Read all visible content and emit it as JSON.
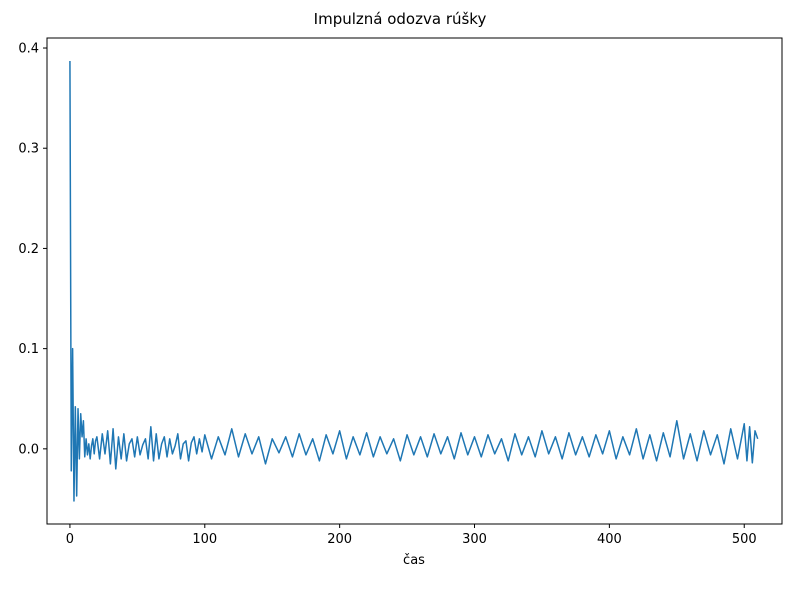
{
  "chart_data": {
    "type": "line",
    "title": "Impulzná odozva rúšky",
    "xlabel": "čas",
    "ylabel": "",
    "xlim": [
      -17,
      528
    ],
    "ylim": [
      -0.075,
      0.41
    ],
    "xticks": [
      0,
      100,
      200,
      300,
      400,
      500
    ],
    "xtick_labels": [
      "0",
      "100",
      "200",
      "300",
      "400",
      "500"
    ],
    "yticks": [
      0.0,
      0.1,
      0.2,
      0.3,
      0.4
    ],
    "ytick_labels": [
      "0.0",
      "0.1",
      "0.2",
      "0.3",
      "0.4"
    ],
    "grid": false,
    "series": [
      {
        "color": "#1f77b4",
        "x": [
          0,
          1,
          2,
          3,
          4,
          5,
          6,
          7,
          8,
          9,
          10,
          11,
          12,
          13,
          14,
          15,
          16,
          17,
          18,
          19,
          20,
          22,
          24,
          26,
          28,
          30,
          32,
          34,
          36,
          38,
          40,
          42,
          44,
          46,
          48,
          50,
          52,
          54,
          56,
          58,
          60,
          62,
          64,
          66,
          68,
          70,
          72,
          74,
          76,
          78,
          80,
          82,
          84,
          86,
          88,
          90,
          92,
          94,
          96,
          98,
          100,
          105,
          110,
          115,
          120,
          125,
          130,
          135,
          140,
          145,
          150,
          155,
          160,
          165,
          170,
          175,
          180,
          185,
          190,
          195,
          200,
          205,
          210,
          215,
          220,
          225,
          230,
          235,
          240,
          245,
          250,
          255,
          260,
          265,
          270,
          275,
          280,
          285,
          290,
          295,
          300,
          305,
          310,
          315,
          320,
          325,
          330,
          335,
          340,
          345,
          350,
          355,
          360,
          365,
          370,
          375,
          380,
          385,
          390,
          395,
          400,
          405,
          410,
          415,
          420,
          425,
          430,
          435,
          440,
          445,
          450,
          455,
          460,
          465,
          470,
          475,
          480,
          485,
          490,
          495,
          500,
          502,
          504,
          506,
          508,
          510
        ],
        "y": [
          0.387,
          -0.022,
          0.1,
          -0.052,
          0.042,
          -0.047,
          0.04,
          -0.01,
          0.035,
          0.012,
          0.028,
          -0.008,
          0.01,
          -0.006,
          0.005,
          -0.01,
          0.003,
          0.01,
          -0.005,
          0.008,
          0.012,
          -0.01,
          0.015,
          -0.005,
          0.018,
          -0.015,
          0.02,
          -0.02,
          0.012,
          -0.01,
          0.015,
          -0.012,
          0.005,
          0.01,
          -0.008,
          0.012,
          -0.006,
          0.004,
          0.01,
          -0.01,
          0.022,
          -0.012,
          0.015,
          -0.01,
          0.005,
          0.012,
          -0.008,
          0.01,
          -0.005,
          0.003,
          0.015,
          -0.01,
          0.005,
          0.008,
          -0.012,
          0.006,
          0.012,
          -0.005,
          0.01,
          -0.003,
          0.014,
          -0.01,
          0.012,
          -0.006,
          0.02,
          -0.008,
          0.015,
          -0.005,
          0.012,
          -0.015,
          0.01,
          -0.004,
          0.012,
          -0.008,
          0.015,
          -0.006,
          0.01,
          -0.012,
          0.014,
          -0.005,
          0.018,
          -0.01,
          0.012,
          -0.006,
          0.016,
          -0.008,
          0.012,
          -0.005,
          0.01,
          -0.012,
          0.014,
          -0.006,
          0.012,
          -0.008,
          0.015,
          -0.005,
          0.012,
          -0.01,
          0.016,
          -0.006,
          0.012,
          -0.008,
          0.014,
          -0.005,
          0.01,
          -0.012,
          0.015,
          -0.006,
          0.012,
          -0.008,
          0.018,
          -0.005,
          0.012,
          -0.01,
          0.016,
          -0.006,
          0.012,
          -0.008,
          0.014,
          -0.005,
          0.018,
          -0.01,
          0.012,
          -0.006,
          0.02,
          -0.01,
          0.014,
          -0.012,
          0.016,
          -0.008,
          0.028,
          -0.01,
          0.015,
          -0.012,
          0.018,
          -0.006,
          0.014,
          -0.015,
          0.02,
          -0.01,
          0.025,
          -0.012,
          0.022,
          -0.014,
          0.018,
          0.01
        ]
      }
    ]
  }
}
